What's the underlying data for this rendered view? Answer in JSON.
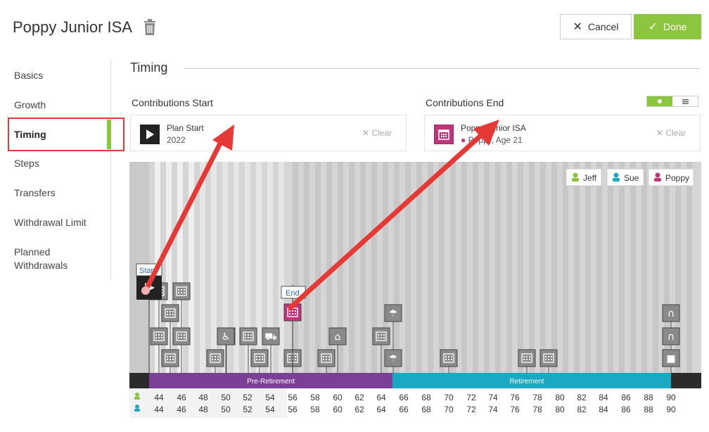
{
  "header": {
    "title": "Poppy Junior ISA",
    "cancel_label": "Cancel",
    "done_label": "Done"
  },
  "sidebar": {
    "items": [
      "Basics",
      "Growth",
      "Timing",
      "Steps",
      "Transfers",
      "Withdrawal Limit",
      "Planned Withdrawals"
    ],
    "active": "Timing"
  },
  "section": {
    "title": "Timing"
  },
  "contributions_start": {
    "label": "Contributions Start",
    "title": "Plan Start",
    "subtitle": "2022",
    "clear_label": "Clear"
  },
  "contributions_end": {
    "label": "Contributions End",
    "title": "Poppy Junior ISA",
    "subtitle": "Poppy, Age 21",
    "clear_label": "Clear"
  },
  "legend": [
    "Jeff",
    "Sue",
    "Poppy"
  ],
  "timeline": {
    "phases": [
      {
        "label": "Pre-Retirement",
        "color": "#7b3f98"
      },
      {
        "label": "Retirement",
        "color": "#1aa9c5"
      }
    ],
    "start_marker_label": "Start",
    "end_marker_label": "End",
    "ages_row1": [
      "44",
      "46",
      "48",
      "50",
      "52",
      "54",
      "56",
      "58",
      "60",
      "62",
      "64",
      "66",
      "68",
      "70",
      "72",
      "74",
      "76",
      "78",
      "80",
      "82",
      "84",
      "86",
      "88",
      "90"
    ],
    "ages_row2": [
      "44",
      "46",
      "48",
      "50",
      "52",
      "54",
      "56",
      "58",
      "60",
      "62",
      "64",
      "66",
      "68",
      "70",
      "72",
      "74",
      "76",
      "78",
      "80",
      "82",
      "84",
      "86",
      "88",
      "90"
    ]
  },
  "colors": {
    "accent": "#8cc63f",
    "jeff": "#8cc63f",
    "sue": "#1aa9c5",
    "poppy": "#c0357a",
    "annotation": "#e53935"
  }
}
